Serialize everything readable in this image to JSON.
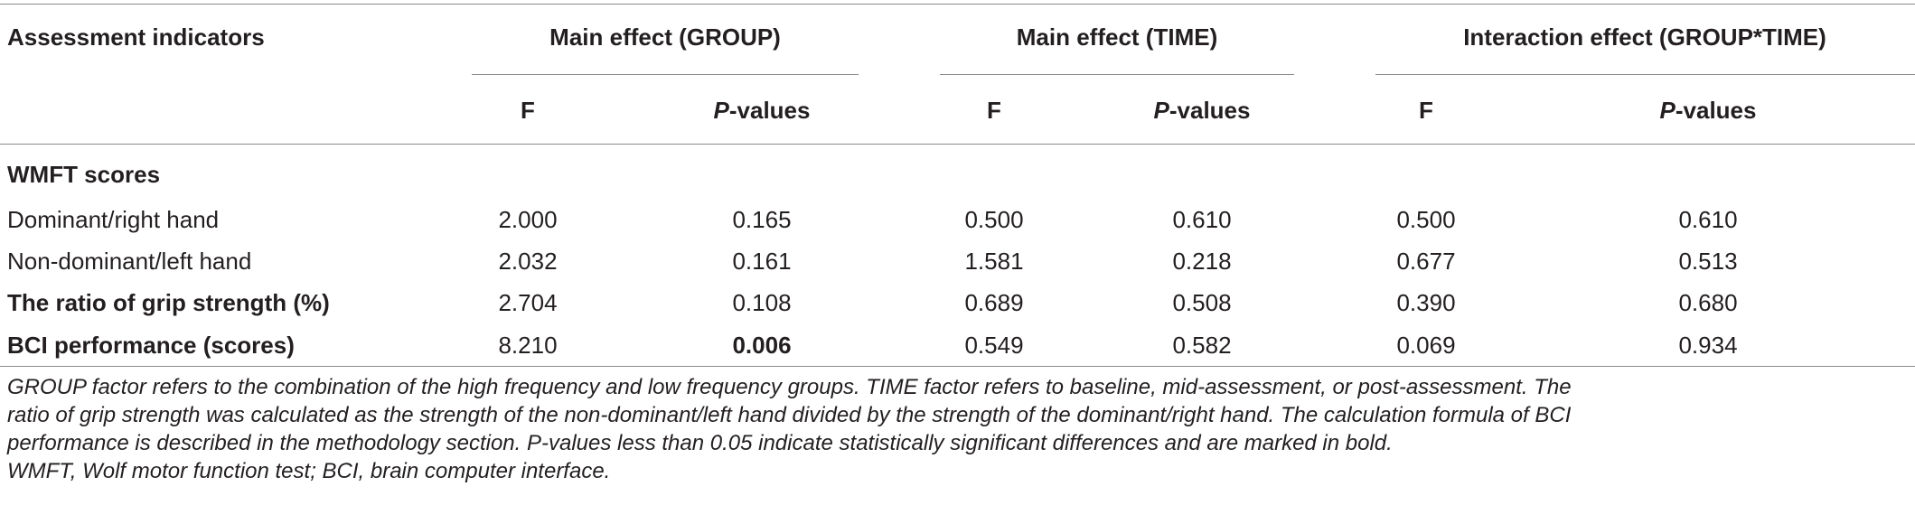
{
  "table": {
    "header": {
      "indicator_label": "Assessment indicators",
      "groups": [
        {
          "label": "Main effect (GROUP)"
        },
        {
          "label": "Main effect (TIME)"
        },
        {
          "label": "Interaction effect (GROUP*TIME)"
        }
      ],
      "f_label": "F",
      "p_prefix": "P",
      "p_suffix": "-values"
    },
    "rows": [
      {
        "label": "WMFT scores",
        "bold": true,
        "values": []
      },
      {
        "label": "Dominant/right hand",
        "bold": false,
        "values": [
          "2.000",
          "0.165",
          "0.500",
          "0.610",
          "0.500",
          "0.610"
        ]
      },
      {
        "label": "Non-dominant/left hand",
        "bold": false,
        "values": [
          "2.032",
          "0.161",
          "1.581",
          "0.218",
          "0.677",
          "0.513"
        ]
      },
      {
        "label": "The ratio of grip strength (%)",
        "bold": true,
        "values": [
          "2.704",
          "0.108",
          "0.689",
          "0.508",
          "0.390",
          "0.680"
        ]
      },
      {
        "label": "BCI performance (scores)",
        "bold": true,
        "values": [
          "8.210",
          "0.006",
          "0.549",
          "0.582",
          "0.069",
          "0.934"
        ]
      }
    ]
  },
  "footnote": {
    "line1": "GROUP factor refers to the combination of the high frequency and low frequency groups. TIME factor refers to baseline, mid-assessment, or post-assessment. The",
    "line2": "ratio of grip strength was calculated as the strength of the non-dominant/left hand divided by the strength of the dominant/right hand. The calculation formula of BCI",
    "line3": "performance is described in the methodology section. P-values less than 0.05 indicate statistically significant differences and are marked in bold.",
    "line4": "WMFT, Wolf motor function test; BCI, brain computer interface."
  }
}
